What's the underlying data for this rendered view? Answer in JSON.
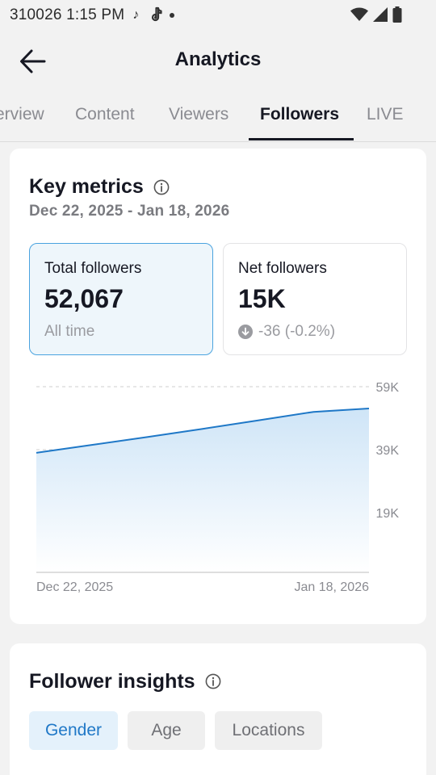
{
  "status_bar": {
    "left_text": "310026  1:15 PM",
    "icons": [
      "tiktok-note-icon",
      "tiktok-logo-icon",
      "notification-dot",
      "wifi-icon",
      "signal-icon",
      "battery-icon"
    ]
  },
  "header": {
    "title": "Analytics",
    "back_icon": "back-arrow-icon"
  },
  "tabs": [
    {
      "label": "erview",
      "active": false
    },
    {
      "label": "Content",
      "active": false
    },
    {
      "label": "Viewers",
      "active": false
    },
    {
      "label": "Followers",
      "active": true
    },
    {
      "label": "LIVE",
      "active": false
    }
  ],
  "key_metrics": {
    "title": "Key metrics",
    "info_icon": "info-icon",
    "date_range": "Dec 22, 2025 - Jan 18, 2026",
    "cards": [
      {
        "label": "Total followers",
        "value": "52,067",
        "sub": "All time",
        "selected": true
      },
      {
        "label": "Net followers",
        "value": "15K",
        "sub": "-36 (-0.2%)",
        "sub_icon": "arrow-down-circle-icon",
        "selected": false
      }
    ]
  },
  "chart_data": {
    "type": "area",
    "x_labels": [
      "Dec 22, 2025",
      "Jan 18, 2026"
    ],
    "y_ticks": [
      "59K",
      "39K",
      "19K"
    ],
    "y_tick_values": [
      59000,
      39000,
      19000
    ],
    "ylim": [
      0,
      59000
    ],
    "series": [
      {
        "values": [
          38000,
          40500,
          43000,
          45600,
          48300,
          51000,
          52067
        ]
      }
    ],
    "colors": {
      "line": "#1f78c7",
      "fill_top": "#cfe5f7",
      "fill_bottom": "#ffffff",
      "grid": "#cfcfcf"
    }
  },
  "follower_insights": {
    "title": "Follower insights",
    "info_icon": "info-icon",
    "pills": [
      {
        "label": "Gender",
        "active": true
      },
      {
        "label": "Age",
        "active": false
      },
      {
        "label": "Locations",
        "active": false
      }
    ]
  }
}
